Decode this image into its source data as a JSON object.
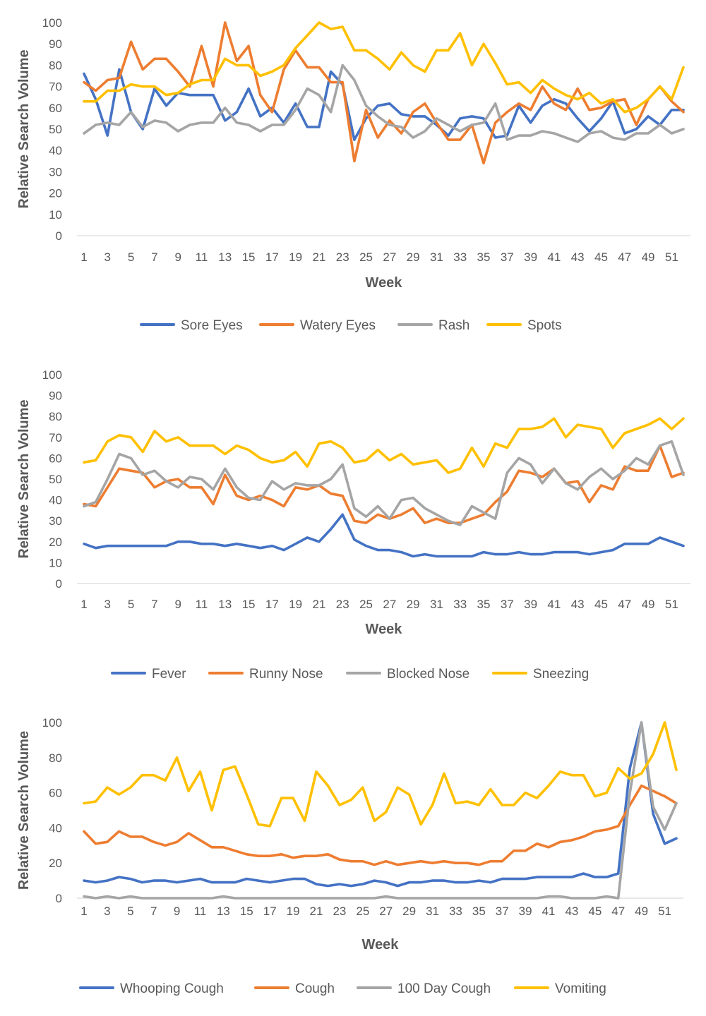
{
  "chart_data": [
    {
      "type": "line",
      "xlabel": "Week",
      "ylabel": "Relative Search Volume",
      "ylim": [
        0,
        100
      ],
      "yticks": [
        0,
        10,
        20,
        30,
        40,
        50,
        60,
        70,
        80,
        90,
        100
      ],
      "x": [
        1,
        2,
        3,
        4,
        5,
        6,
        7,
        8,
        9,
        10,
        11,
        12,
        13,
        14,
        15,
        16,
        17,
        18,
        19,
        20,
        21,
        22,
        23,
        24,
        25,
        26,
        27,
        28,
        29,
        30,
        31,
        32,
        33,
        34,
        35,
        36,
        37,
        38,
        39,
        40,
        41,
        42,
        43,
        44,
        45,
        46,
        47,
        48,
        49,
        50,
        51,
        52
      ],
      "xtick_labels": [
        "1",
        "3",
        "5",
        "7",
        "9",
        "11",
        "13",
        "15",
        "17",
        "19",
        "21",
        "23",
        "25",
        "27",
        "29",
        "31",
        "33",
        "35",
        "37",
        "39",
        "41",
        "43",
        "45",
        "47",
        "49",
        "51"
      ],
      "grid": false,
      "legend_position": "bottom",
      "series": [
        {
          "name": "Sore Eyes",
          "color": "#4472C4",
          "values": [
            76,
            64,
            47,
            78,
            58,
            50,
            69,
            61,
            67,
            66,
            66,
            66,
            54,
            58,
            69,
            56,
            60,
            53,
            62,
            51,
            51,
            77,
            71,
            45,
            55,
            61,
            62,
            57,
            56,
            56,
            52,
            47,
            55,
            56,
            55,
            46,
            47,
            61,
            53,
            61,
            64,
            62,
            55,
            49,
            55,
            63,
            48,
            50,
            56,
            52,
            59,
            59
          ]
        },
        {
          "name": "Watery Eyes",
          "color": "#ED7D31",
          "values": [
            72,
            68,
            73,
            74,
            91,
            78,
            83,
            83,
            77,
            70,
            89,
            70,
            100,
            82,
            89,
            66,
            58,
            78,
            87,
            79,
            79,
            72,
            72,
            35,
            59,
            46,
            54,
            48,
            58,
            62,
            53,
            45,
            45,
            52,
            34,
            53,
            58,
            62,
            59,
            70,
            62,
            59,
            69,
            59,
            60,
            63,
            64,
            52,
            64,
            70,
            63,
            58
          ]
        },
        {
          "name": "Rash",
          "color": "#A5A5A5",
          "values": [
            48,
            52,
            53,
            52,
            58,
            51,
            54,
            53,
            49,
            52,
            53,
            53,
            60,
            53,
            52,
            49,
            52,
            52,
            59,
            69,
            66,
            58,
            80,
            73,
            61,
            56,
            52,
            51,
            46,
            49,
            55,
            52,
            49,
            52,
            53,
            62,
            45,
            47,
            47,
            49,
            48,
            46,
            44,
            48,
            49,
            46,
            45,
            48,
            48,
            52,
            48,
            50
          ]
        },
        {
          "name": "Spots",
          "color": "#FFC000",
          "values": [
            63,
            63,
            68,
            68,
            71,
            70,
            70,
            66,
            67,
            71,
            73,
            73,
            83,
            80,
            80,
            75,
            77,
            80,
            88,
            94,
            100,
            97,
            98,
            87,
            87,
            83,
            78,
            86,
            80,
            77,
            87,
            87,
            95,
            80,
            90,
            81,
            71,
            72,
            67,
            73,
            69,
            66,
            64,
            67,
            62,
            64,
            58,
            60,
            64,
            70,
            64,
            79
          ]
        }
      ]
    },
    {
      "type": "line",
      "xlabel": "Week",
      "ylabel": "Relative Search Volume",
      "ylim": [
        0,
        100
      ],
      "yticks": [
        0,
        10,
        20,
        30,
        40,
        50,
        60,
        70,
        80,
        90,
        100
      ],
      "x": [
        1,
        2,
        3,
        4,
        5,
        6,
        7,
        8,
        9,
        10,
        11,
        12,
        13,
        14,
        15,
        16,
        17,
        18,
        19,
        20,
        21,
        22,
        23,
        24,
        25,
        26,
        27,
        28,
        29,
        30,
        31,
        32,
        33,
        34,
        35,
        36,
        37,
        38,
        39,
        40,
        41,
        42,
        43,
        44,
        45,
        46,
        47,
        48,
        49,
        50,
        51,
        52
      ],
      "xtick_labels": [
        "1",
        "3",
        "5",
        "7",
        "9",
        "11",
        "13",
        "15",
        "17",
        "19",
        "21",
        "23",
        "25",
        "27",
        "29",
        "31",
        "33",
        "35",
        "37",
        "39",
        "41",
        "43",
        "45",
        "47",
        "49",
        "51"
      ],
      "grid": false,
      "legend_position": "bottom",
      "series": [
        {
          "name": "Fever",
          "color": "#4472C4",
          "values": [
            19,
            17,
            18,
            18,
            18,
            18,
            18,
            18,
            20,
            20,
            19,
            19,
            18,
            19,
            18,
            17,
            18,
            16,
            19,
            22,
            20,
            26,
            33,
            21,
            18,
            16,
            16,
            15,
            13,
            14,
            13,
            13,
            13,
            13,
            15,
            14,
            14,
            15,
            14,
            14,
            15,
            15,
            15,
            14,
            15,
            16,
            19,
            19,
            19,
            22,
            20,
            18
          ]
        },
        {
          "name": "Runny Nose",
          "color": "#ED7D31",
          "values": [
            38,
            37,
            46,
            55,
            54,
            53,
            46,
            49,
            50,
            46,
            46,
            38,
            52,
            42,
            40,
            42,
            40,
            37,
            46,
            45,
            47,
            43,
            42,
            30,
            29,
            33,
            31,
            33,
            36,
            29,
            31,
            29,
            29,
            31,
            33,
            39,
            44,
            54,
            53,
            51,
            55,
            48,
            49,
            39,
            47,
            45,
            56,
            54,
            54,
            66,
            51,
            53
          ]
        },
        {
          "name": "Blocked Nose",
          "color": "#A5A5A5",
          "values": [
            37,
            39,
            50,
            62,
            60,
            52,
            54,
            49,
            46,
            51,
            50,
            45,
            55,
            46,
            41,
            40,
            49,
            45,
            48,
            47,
            47,
            50,
            57,
            36,
            32,
            37,
            31,
            40,
            41,
            36,
            33,
            30,
            28,
            37,
            34,
            31,
            53,
            60,
            57,
            48,
            55,
            48,
            45,
            51,
            55,
            50,
            54,
            60,
            57,
            66,
            68,
            52
          ]
        },
        {
          "name": "Sneezing",
          "color": "#FFC000",
          "values": [
            58,
            59,
            68,
            71,
            70,
            63,
            73,
            68,
            70,
            66,
            66,
            66,
            62,
            66,
            64,
            60,
            58,
            59,
            63,
            56,
            67,
            68,
            65,
            58,
            59,
            64,
            59,
            62,
            57,
            58,
            59,
            53,
            55,
            65,
            56,
            67,
            65,
            74,
            74,
            75,
            79,
            70,
            76,
            75,
            74,
            65,
            72,
            74,
            76,
            79,
            74,
            79
          ]
        }
      ]
    },
    {
      "type": "line",
      "xlabel": "Week",
      "ylabel": "Relative Search Volume",
      "ylim": [
        0,
        100
      ],
      "yticks": [
        0,
        20,
        40,
        60,
        80,
        100
      ],
      "x": [
        1,
        2,
        3,
        4,
        5,
        6,
        7,
        8,
        9,
        10,
        11,
        12,
        13,
        14,
        15,
        16,
        17,
        18,
        19,
        20,
        21,
        22,
        23,
        24,
        25,
        26,
        27,
        28,
        29,
        30,
        31,
        32,
        33,
        34,
        35,
        36,
        37,
        38,
        39,
        40,
        41,
        42,
        43,
        44,
        45,
        46,
        47,
        48,
        49,
        50,
        51,
        52
      ],
      "xtick_labels": [
        "1",
        "3",
        "5",
        "7",
        "9",
        "11",
        "13",
        "15",
        "17",
        "19",
        "21",
        "23",
        "25",
        "27",
        "29",
        "31",
        "33",
        "35",
        "37",
        "39",
        "41",
        "43",
        "45",
        "47",
        "49",
        "51"
      ],
      "grid": false,
      "legend_position": "bottom",
      "series": [
        {
          "name": "Whooping Cough",
          "color": "#4472C4",
          "values": [
            10,
            9,
            10,
            12,
            11,
            9,
            10,
            10,
            9,
            10,
            11,
            9,
            9,
            9,
            11,
            10,
            9,
            10,
            11,
            11,
            8,
            7,
            8,
            7,
            8,
            10,
            9,
            7,
            9,
            9,
            10,
            10,
            9,
            9,
            10,
            9,
            11,
            11,
            11,
            12,
            12,
            12,
            12,
            14,
            12,
            12,
            14,
            74,
            100,
            48,
            31,
            34
          ]
        },
        {
          "name": "Cough",
          "color": "#ED7D31",
          "values": [
            38,
            31,
            32,
            38,
            35,
            35,
            32,
            30,
            32,
            37,
            33,
            29,
            29,
            27,
            25,
            24,
            24,
            25,
            23,
            24,
            24,
            25,
            22,
            21,
            21,
            19,
            21,
            19,
            20,
            21,
            20,
            21,
            20,
            20,
            19,
            21,
            21,
            27,
            27,
            31,
            29,
            32,
            33,
            35,
            38,
            39,
            41,
            53,
            64,
            61,
            58,
            54
          ]
        },
        {
          "name": "100 Day Cough",
          "color": "#A5A5A5",
          "values": [
            1,
            0,
            1,
            0,
            1,
            0,
            0,
            0,
            0,
            0,
            0,
            0,
            1,
            0,
            0,
            0,
            0,
            0,
            0,
            0,
            0,
            0,
            0,
            0,
            0,
            0,
            1,
            0,
            0,
            0,
            0,
            0,
            0,
            0,
            0,
            0,
            0,
            0,
            0,
            0,
            1,
            1,
            0,
            0,
            0,
            1,
            0,
            60,
            100,
            52,
            39,
            54
          ]
        },
        {
          "name": "Vomiting",
          "color": "#FFC000",
          "values": [
            54,
            55,
            63,
            59,
            63,
            70,
            70,
            67,
            80,
            61,
            72,
            50,
            73,
            75,
            59,
            42,
            41,
            57,
            57,
            44,
            72,
            64,
            53,
            56,
            63,
            44,
            49,
            63,
            59,
            42,
            53,
            71,
            54,
            55,
            53,
            62,
            53,
            53,
            60,
            57,
            64,
            72,
            70,
            70,
            58,
            60,
            74,
            68,
            71,
            82,
            100,
            73
          ]
        }
      ]
    }
  ]
}
